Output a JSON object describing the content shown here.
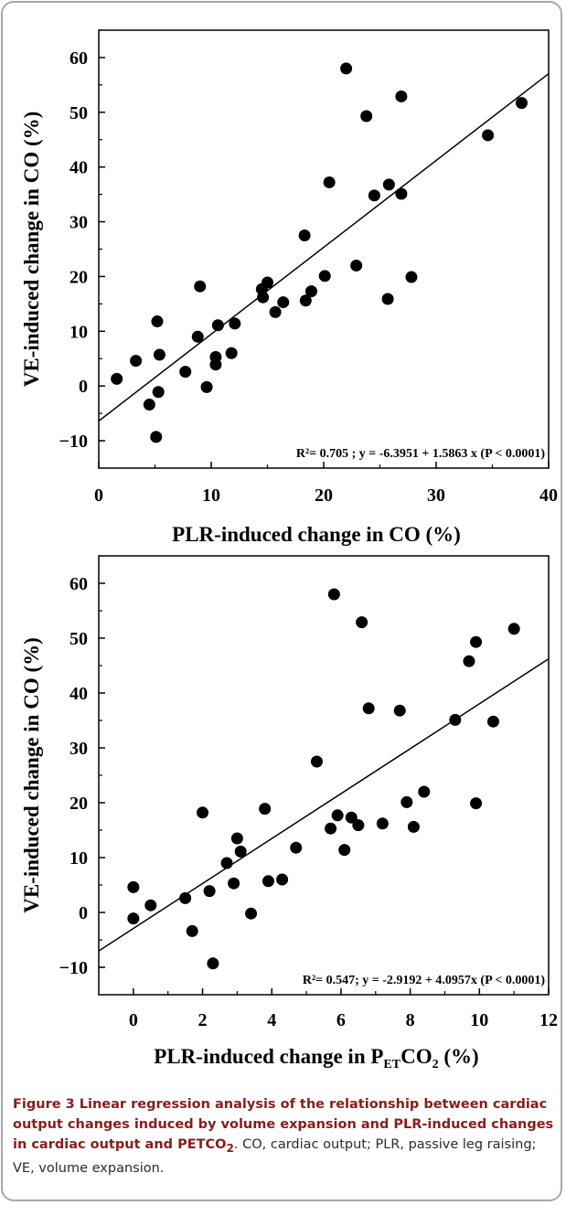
{
  "chart_data": [
    {
      "type": "scatter",
      "xlabel": "PLR-induced change in CO (%)",
      "ylabel": "VE-induced change in CO (%)",
      "xlim": [
        0,
        40
      ],
      "ylim": [
        -15,
        65
      ],
      "xticks": [
        "0",
        "10",
        "20",
        "30",
        "40"
      ],
      "yticks": [
        "60",
        "50",
        "40",
        "30",
        "20",
        "10",
        "0",
        "−10"
      ],
      "annotation": "R²= 0.705 ; y = -6.3951 + 1.5863 x  (P < 0.0001)",
      "regression": {
        "intercept": -6.3951,
        "slope": 1.5863
      },
      "points": [
        [
          1.6,
          1.3
        ],
        [
          3.3,
          4.6
        ],
        [
          4.5,
          -3.4
        ],
        [
          5.1,
          -9.3
        ],
        [
          5.2,
          11.8
        ],
        [
          5.3,
          -1.1
        ],
        [
          5.4,
          5.7
        ],
        [
          7.7,
          2.6
        ],
        [
          8.8,
          9.0
        ],
        [
          9.0,
          18.2
        ],
        [
          9.6,
          -0.2
        ],
        [
          10.4,
          5.3
        ],
        [
          10.4,
          3.9
        ],
        [
          10.6,
          11.1
        ],
        [
          11.8,
          6.0
        ],
        [
          12.1,
          11.4
        ],
        [
          14.5,
          17.7
        ],
        [
          14.6,
          16.2
        ],
        [
          15.0,
          18.9
        ],
        [
          15.7,
          13.5
        ],
        [
          16.4,
          15.3
        ],
        [
          18.3,
          27.5
        ],
        [
          18.4,
          15.6
        ],
        [
          18.9,
          17.3
        ],
        [
          20.1,
          20.1
        ],
        [
          20.5,
          37.2
        ],
        [
          22.0,
          58.0
        ],
        [
          22.9,
          22.0
        ],
        [
          23.8,
          49.3
        ],
        [
          24.5,
          34.8
        ],
        [
          25.7,
          15.9
        ],
        [
          25.8,
          36.8
        ],
        [
          26.9,
          52.9
        ],
        [
          26.9,
          35.1
        ],
        [
          27.8,
          19.9
        ],
        [
          34.6,
          45.8
        ],
        [
          37.6,
          51.7
        ]
      ]
    },
    {
      "type": "scatter",
      "xlabel": "PLR-induced change in P",
      "xlabel_sub": "ET",
      "xlabel_rest": "CO",
      "xlabel_sub2": "2",
      "xlabel_tail": "  (%)",
      "ylabel": "VE-induced change in CO (%)",
      "xlim": [
        -1,
        12
      ],
      "ylim": [
        -15,
        65
      ],
      "xticks": [
        "0",
        "2",
        "4",
        "6",
        "8",
        "10",
        "12"
      ],
      "yticks": [
        "60",
        "50",
        "40",
        "30",
        "20",
        "10",
        "0",
        "−10"
      ],
      "annotation": "R²= 0.547; y = -2.9192 + 4.0957x  (P < 0.0001)",
      "regression": {
        "intercept": -2.9192,
        "slope": 4.0957
      },
      "points": [
        [
          0.0,
          4.6
        ],
        [
          0.0,
          -1.1
        ],
        [
          0.5,
          1.3
        ],
        [
          1.5,
          2.6
        ],
        [
          1.7,
          -3.4
        ],
        [
          2.0,
          18.2
        ],
        [
          2.2,
          3.9
        ],
        [
          2.3,
          -9.3
        ],
        [
          2.7,
          9.0
        ],
        [
          2.9,
          5.3
        ],
        [
          3.0,
          13.5
        ],
        [
          3.1,
          11.1
        ],
        [
          3.4,
          -0.2
        ],
        [
          3.8,
          18.9
        ],
        [
          3.9,
          5.7
        ],
        [
          4.3,
          6.0
        ],
        [
          4.7,
          11.8
        ],
        [
          5.3,
          27.5
        ],
        [
          5.7,
          15.3
        ],
        [
          5.8,
          58.0
        ],
        [
          5.9,
          17.7
        ],
        [
          6.1,
          11.4
        ],
        [
          6.3,
          17.3
        ],
        [
          6.5,
          15.9
        ],
        [
          6.6,
          52.9
        ],
        [
          6.8,
          37.2
        ],
        [
          7.2,
          16.2
        ],
        [
          7.7,
          36.8
        ],
        [
          7.9,
          20.1
        ],
        [
          8.1,
          15.6
        ],
        [
          8.4,
          22.0
        ],
        [
          9.3,
          35.1
        ],
        [
          9.7,
          45.8
        ],
        [
          9.9,
          19.9
        ],
        [
          9.9,
          49.3
        ],
        [
          10.4,
          34.8
        ],
        [
          11.0,
          51.7
        ]
      ]
    }
  ],
  "caption": {
    "lead": "Figure 3 Linear regression analysis of the relationship between cardiac output changes induced by volume expansion and PLR-induced changes in cardiac output and PETCO",
    "lead_sub": "2",
    "rest": ". CO, cardiac output; PLR, passive leg raising; VE, volume expansion."
  }
}
